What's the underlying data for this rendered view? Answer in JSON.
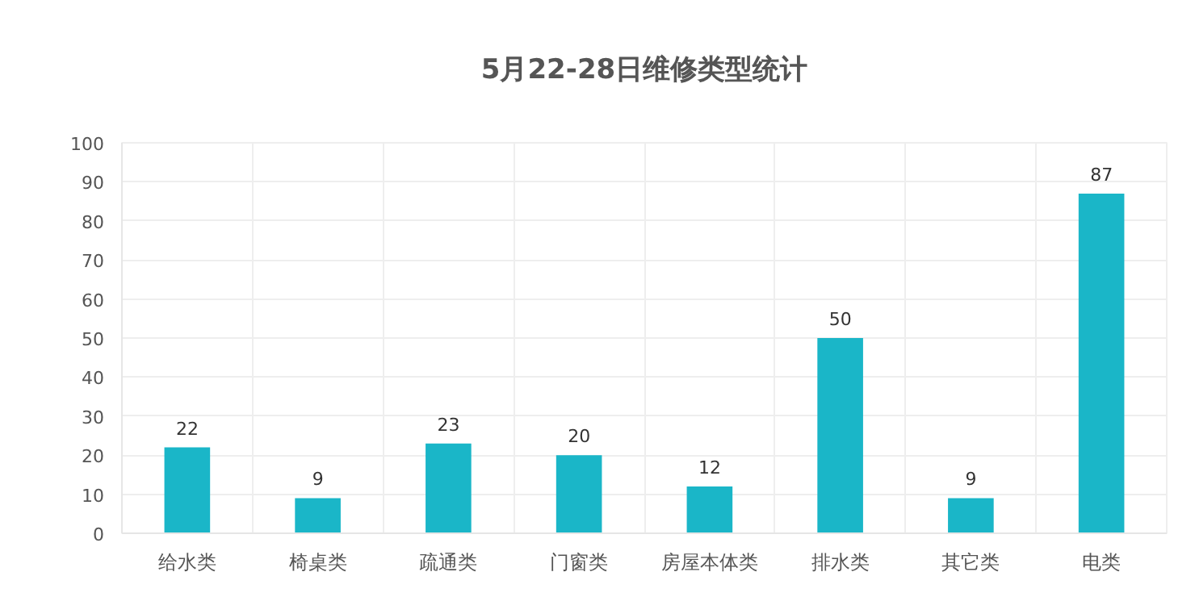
{
  "chart_data": {
    "type": "bar",
    "title": "5月22-28日维修类型统计",
    "categories": [
      "给水类",
      "椅桌类",
      "疏通类",
      "门窗类",
      "房屋本体类",
      "排水类",
      "其它类",
      "电类"
    ],
    "values": [
      22,
      9,
      23,
      20,
      12,
      50,
      9,
      87
    ],
    "color": "#1ab6c8",
    "ylim": [
      0,
      100
    ],
    "yticks": [
      0,
      10,
      20,
      30,
      40,
      50,
      60,
      70,
      80,
      90,
      100
    ],
    "grid": true,
    "data_labels": true
  }
}
